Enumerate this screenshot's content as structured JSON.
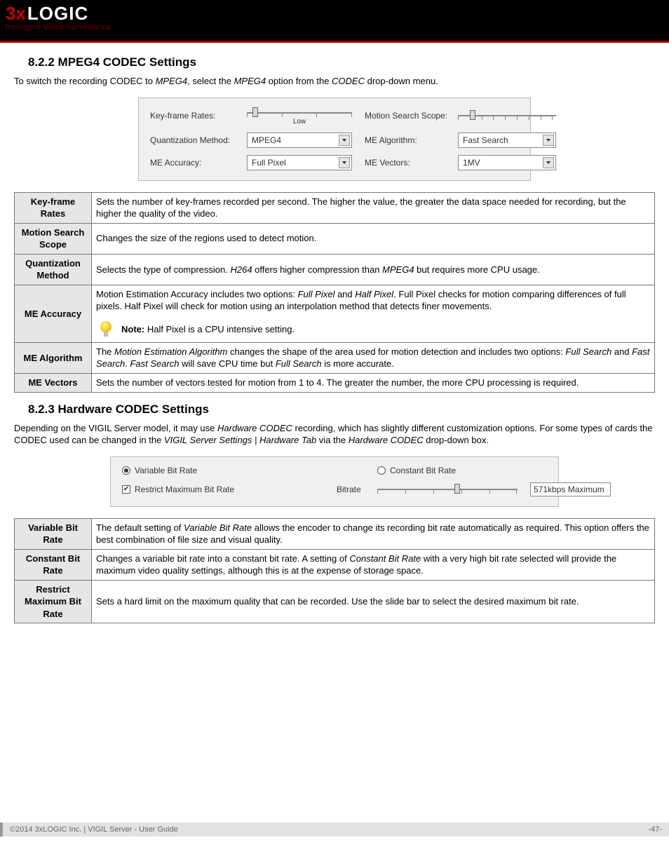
{
  "header": {
    "brand_prefix": "3x",
    "brand_main": "LOGIC",
    "tagline": "Intelligent Video Surveillance"
  },
  "s822": {
    "heading": "8.2.2 MPEG4 CODEC Settings",
    "intro_pre": "To switch the recording CODEC to ",
    "intro_em1": "MPEG4",
    "intro_mid": ", select the ",
    "intro_em2": "MPEG4",
    "intro_mid2": " option from the ",
    "intro_em3": "CODEC",
    "intro_post": " drop-down menu."
  },
  "panel1": {
    "lbl_keyframe": "Key-frame Rates:",
    "lbl_motion_scope": "Motion Search Scope:",
    "lbl_quant": "Quantization Method:",
    "lbl_me_algo": "ME Algorithm:",
    "lbl_me_acc": "ME Accuracy:",
    "lbl_me_vec": "ME Vectors:",
    "slider_low": "Low",
    "val_quant": "MPEG4",
    "val_me_algo": "Fast Search",
    "val_me_acc": "Full Pixel",
    "val_me_vec": "1MV",
    "keyframe_thumb_pct": 5,
    "motion_thumb_pct": 12
  },
  "table1": [
    {
      "term": "Key-frame Rates",
      "desc": "Sets the number of key-frames recorded per second. The higher the value, the greater the data space needed for recording, but the higher the quality of the video."
    },
    {
      "term": "Motion Search Scope",
      "desc": "Changes the size of the regions used to detect motion."
    },
    {
      "term": "Quantization Method",
      "desc_pre": "Selects the type of compression. ",
      "em1": "H264",
      "mid1": " offers higher compression than ",
      "em2": "MPEG4",
      "post": " but requires more CPU usage."
    },
    {
      "term": "ME Accuracy",
      "desc_pre": "Motion Estimation Accuracy includes two options: ",
      "em1": "Full Pixel",
      "mid1": " and ",
      "em2": "Half Pixel",
      "post": ". Full Pixel checks for motion comparing differences of full pixels. Half Pixel will check for motion using an interpolation method that detects finer movements.",
      "note_label": "Note:",
      "note_text": " Half Pixel is a CPU intensive setting."
    },
    {
      "term": "ME Algorithm",
      "desc_pre": "The ",
      "em1": "Motion Estimation Algorithm",
      "mid1": " changes the shape of the area used for motion detection and includes two options: ",
      "em2": "Full Search",
      "mid2": " and ",
      "em3": "Fast Search",
      "mid3": ". ",
      "em4": "Fast Search",
      "mid4": " will save CPU time but ",
      "em5": "Full Search",
      "post": " is more accurate."
    },
    {
      "term": "ME Vectors",
      "desc": "Sets the number of vectors tested for motion from 1 to 4. The greater the number, the more CPU processing is required."
    }
  ],
  "s823": {
    "heading": "8.2.3 Hardware CODEC Settings",
    "intro_pre": "Depending on the VIGIL Server model, it may use ",
    "em1": "Hardware CODEC",
    "mid1": " recording, which has slightly different customization options. For some types of cards the CODEC used can be changed in the ",
    "em2": "VIGIL Server Settings | Hardware Tab",
    "mid2": " via the ",
    "em3": "Hardware CODEC",
    "post": " drop-down box."
  },
  "panel2": {
    "radio_var": "Variable Bit Rate",
    "radio_const": "Constant Bit Rate",
    "check_restrict": "Restrict Maximum Bit Rate",
    "lbl_bitrate": "Bitrate",
    "bitrate_val": "571kbps Maximum",
    "bitrate_thumb_pct": 55
  },
  "table2": [
    {
      "term": "Variable Bit Rate",
      "desc_pre": "The default setting of ",
      "em1": "Variable Bit Rate",
      "post": " allows the encoder to change its recording bit rate automatically as required. This option offers the best combination of file size and visual quality."
    },
    {
      "term": "Constant Bit Rate",
      "desc_pre": "Changes a variable bit rate into a constant bit rate. A setting of ",
      "em1": "Constant Bit Rate",
      "post": " with a very high bit rate selected will provide the maximum video quality settings, although this is at the expense of storage space."
    },
    {
      "term": "Restrict Maximum Bit Rate",
      "desc": "Sets a hard limit on the maximum quality that can be recorded. Use the slide bar to select the desired maximum bit rate."
    }
  ],
  "footer": {
    "left": "©2014 3xLOGIC Inc.  |  VIGIL Server - User Guide",
    "right": "-47-"
  }
}
